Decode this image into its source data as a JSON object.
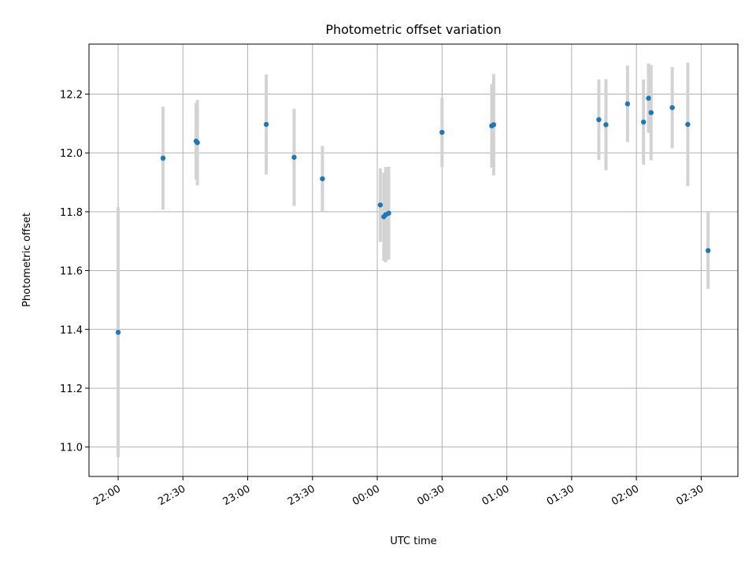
{
  "chart_data": {
    "type": "scatter",
    "title": "Photometric offset variation",
    "xlabel": "UTC time",
    "ylabel": "Photometric offset",
    "x_tick_labels": [
      "22:00",
      "22:30",
      "23:00",
      "23:30",
      "00:00",
      "00:30",
      "01:00",
      "01:30",
      "02:00",
      "02:30"
    ],
    "x_ticks_minutes": [
      0,
      30,
      60,
      90,
      120,
      150,
      180,
      210,
      240,
      270
    ],
    "xlim_minutes": [
      -13.5,
      287
    ],
    "y_ticks": [
      11.0,
      11.2,
      11.4,
      11.6,
      11.8,
      12.0,
      12.2
    ],
    "y_tick_labels": [
      "11.0",
      "11.2",
      "11.4",
      "11.6",
      "11.8",
      "12.0",
      "12.2"
    ],
    "ylim": [
      10.9,
      12.37
    ],
    "grid": true,
    "marker_color": "#1f77b4",
    "errorbar_color": "#d3d3d3",
    "points": [
      {
        "t": 0.0,
        "y": 11.39,
        "err": 0.425
      },
      {
        "t": 20.8,
        "y": 11.982,
        "err": 0.175
      },
      {
        "t": 36.1,
        "y": 12.04,
        "err": 0.13
      },
      {
        "t": 36.7,
        "y": 12.035,
        "err": 0.145
      },
      {
        "t": 68.6,
        "y": 12.097,
        "err": 0.17
      },
      {
        "t": 81.5,
        "y": 11.985,
        "err": 0.165
      },
      {
        "t": 94.6,
        "y": 11.912,
        "err": 0.112
      },
      {
        "t": 121.4,
        "y": 11.823,
        "err": 0.125
      },
      {
        "t": 123.0,
        "y": 11.783,
        "err": 0.15
      },
      {
        "t": 123.9,
        "y": 11.79,
        "err": 0.162
      },
      {
        "t": 125.3,
        "y": 11.795,
        "err": 0.158
      },
      {
        "t": 150.0,
        "y": 12.07,
        "err": 0.118
      },
      {
        "t": 173.0,
        "y": 12.092,
        "err": 0.142
      },
      {
        "t": 173.9,
        "y": 12.096,
        "err": 0.172
      },
      {
        "t": 222.6,
        "y": 12.113,
        "err": 0.137
      },
      {
        "t": 225.9,
        "y": 12.096,
        "err": 0.155
      },
      {
        "t": 235.9,
        "y": 12.167,
        "err": 0.13
      },
      {
        "t": 243.3,
        "y": 12.105,
        "err": 0.145
      },
      {
        "t": 245.6,
        "y": 12.186,
        "err": 0.118
      },
      {
        "t": 246.8,
        "y": 12.137,
        "err": 0.162
      },
      {
        "t": 256.6,
        "y": 12.154,
        "err": 0.138
      },
      {
        "t": 263.8,
        "y": 12.097,
        "err": 0.21
      },
      {
        "t": 273.2,
        "y": 11.668,
        "err": 0.13
      }
    ]
  }
}
